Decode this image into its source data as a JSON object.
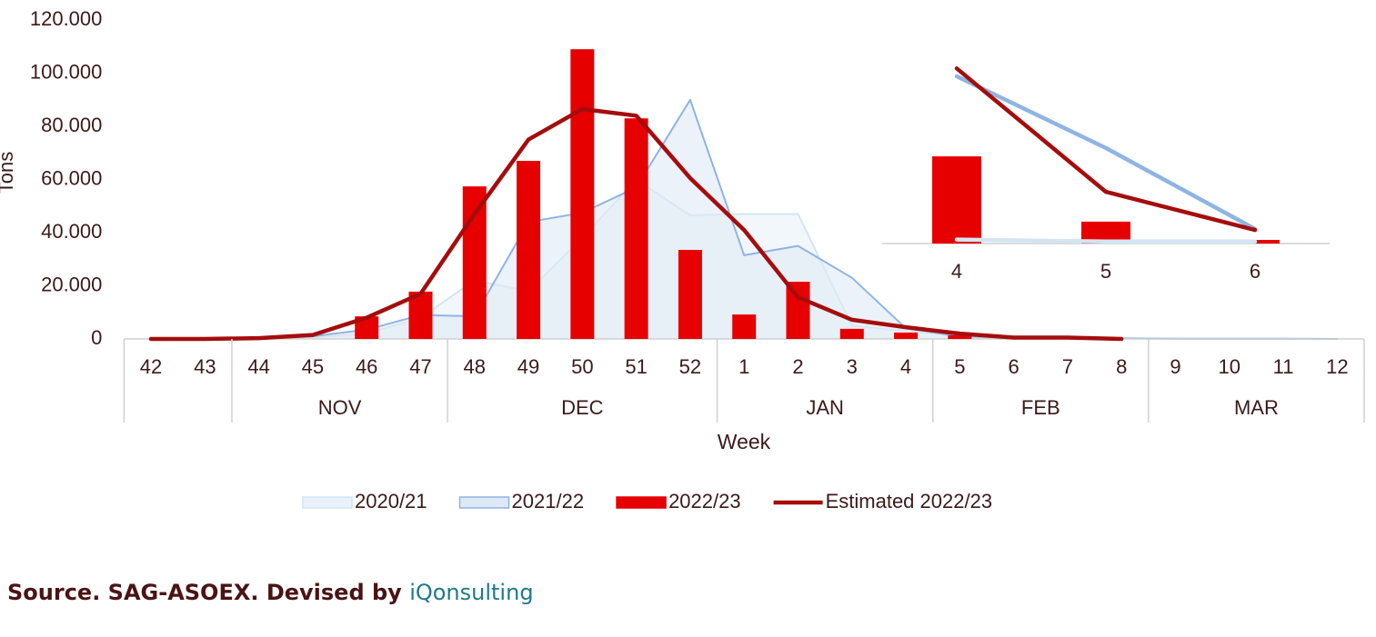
{
  "chart_data": [
    {
      "type": "combo",
      "y_label": "Tons",
      "x_label": "Week",
      "categories": [
        "42",
        "43",
        "44",
        "45",
        "46",
        "47",
        "48",
        "49",
        "50",
        "51",
        "52",
        "1",
        "2",
        "3",
        "4",
        "5",
        "6",
        "7",
        "8",
        "9",
        "10",
        "11",
        "12"
      ],
      "groups": [
        {
          "label": "NOV",
          "categories": [
            "44",
            "45",
            "46",
            "47"
          ]
        },
        {
          "label": "DEC",
          "categories": [
            "48",
            "49",
            "50",
            "51",
            "52"
          ]
        },
        {
          "label": "JAN",
          "categories": [
            "1",
            "2",
            "3",
            "4"
          ]
        },
        {
          "label": "FEB",
          "categories": [
            "5",
            "6",
            "7",
            "8"
          ]
        },
        {
          "label": "MAR",
          "categories": [
            "9",
            "10",
            "11",
            "12"
          ]
        }
      ],
      "ylim": [
        0,
        120000
      ],
      "yticks": [
        0,
        {
          "value": 20000,
          "label": "20.000"
        },
        {
          "value": 40000,
          "label": "40.000"
        },
        {
          "value": 60000,
          "label": "60.000"
        },
        {
          "value": 80000,
          "label": "80.000"
        },
        {
          "value": 100000,
          "label": "100.000"
        },
        {
          "value": 120000,
          "label": "120.000"
        }
      ],
      "grid": false,
      "legend": "bottom",
      "series": [
        {
          "name": "2020/21",
          "type": "area",
          "color": "#d3e5f2",
          "fill": "#e9f2f9",
          "values": [
            0,
            0,
            0,
            500,
            2000,
            8000,
            22000,
            18000,
            38000,
            60000,
            46500,
            47000,
            47000,
            5000,
            3000,
            1000,
            500,
            300,
            200,
            100,
            100,
            100,
            0
          ]
        },
        {
          "name": "2021/22",
          "type": "area",
          "color": "#8fb4e3",
          "fill": "#dfe9f5",
          "values": [
            0,
            0,
            0,
            1000,
            3500,
            9000,
            8500,
            44000,
            47500,
            57000,
            90000,
            31500,
            35000,
            23000,
            4000,
            1000,
            500,
            300,
            200,
            100,
            100,
            100,
            0
          ]
        },
        {
          "name": "2022/23",
          "type": "bar",
          "color": "#e60000",
          "values": [
            0,
            0,
            0,
            0,
            8500,
            17800,
            57400,
            67000,
            109000,
            83000,
            33500,
            9200,
            21500,
            3800,
            2400,
            1400,
            null,
            null,
            null,
            null,
            null,
            null,
            null
          ]
        },
        {
          "name": "Estimated 2022/23",
          "type": "line",
          "color": "#a50d0d",
          "values": [
            0,
            0,
            300,
            1500,
            8000,
            17000,
            47000,
            75000,
            86500,
            84000,
            60500,
            41000,
            15700,
            7200,
            4400,
            2000,
            500,
            500,
            0,
            null,
            null,
            null,
            null
          ]
        }
      ]
    },
    {
      "type": "combo",
      "categories": [
        "4",
        "5",
        "6"
      ],
      "ylim": [
        0,
        5000
      ],
      "series": [
        {
          "name": "2020/21",
          "type": "line",
          "color": "#d3e5f2",
          "values": [
            100,
            50,
            50
          ]
        },
        {
          "name": "2021/22",
          "type": "line",
          "color": "#8fb4e3",
          "values": [
            4200,
            2400,
            365
          ]
        },
        {
          "name": "2022/23",
          "type": "bar",
          "color": "#e60000",
          "values": [
            2190,
            550,
            90
          ]
        },
        {
          "name": "Estimated 2022/23",
          "type": "line",
          "color": "#a50d0d",
          "values": [
            4400,
            1300,
            340
          ]
        }
      ]
    }
  ],
  "source": {
    "text": "Source. SAG-ASOEX. Devised by",
    "brand": "iQonsulting"
  }
}
